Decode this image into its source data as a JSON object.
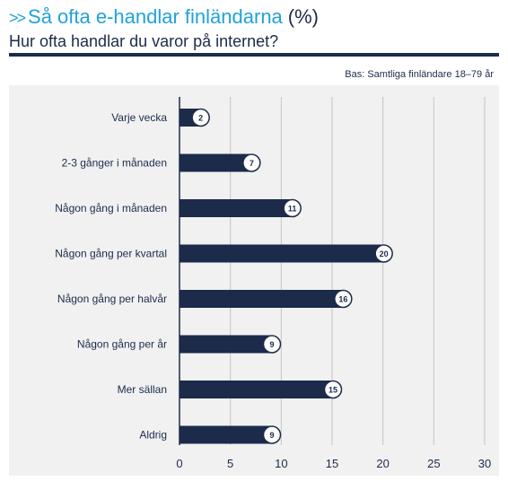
{
  "header": {
    "marker": ">>",
    "title": "Så ofta e-handlar finländarna",
    "unit": "(%)",
    "subtitle": "Hur ofta handlar du varor på internet?",
    "base_note": "Bas: Samtliga finländare 18–79 år"
  },
  "colors": {
    "bar": "#1c2b4a",
    "title_accent": "#1fa3d9",
    "panel_bg": "#f1f1f2",
    "grid": "#c4c4c8"
  },
  "chart_data": {
    "type": "bar",
    "orientation": "horizontal",
    "title": "Så ofta e-handlar finländarna (%)",
    "subtitle": "Hur ofta handlar du varor på internet?",
    "categories": [
      "Varje vecka",
      "2-3 gånger i månaden",
      "Någon gång i månaden",
      "Någon gång per kvartal",
      "Någon gång per halvår",
      "Någon gång per år",
      "Mer sällan",
      "Aldrig"
    ],
    "values": [
      2,
      7,
      11,
      20,
      16,
      9,
      15,
      9
    ],
    "xlim": [
      0,
      30
    ],
    "xticks": [
      0,
      5,
      10,
      15,
      20,
      25,
      30
    ],
    "grid": true
  }
}
